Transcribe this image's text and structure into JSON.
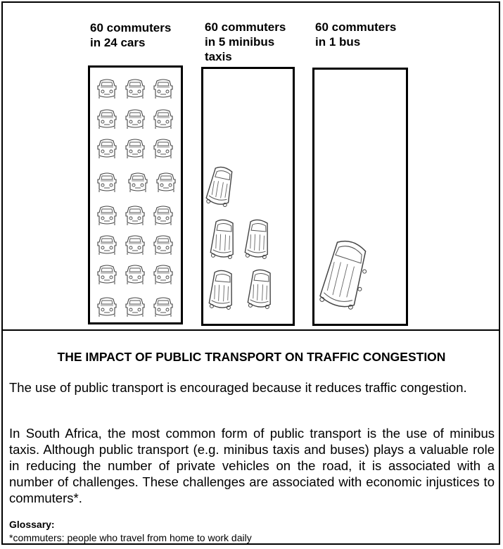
{
  "diagram": {
    "columns": [
      {
        "label": "60 commuters\nin 24 cars",
        "vehicle_icon": "car-icon",
        "vehicle_count": 24
      },
      {
        "label": "60 commuters\nin 5 minibus\ntaxis",
        "vehicle_icon": "minibus-icon",
        "vehicle_count": 5
      },
      {
        "label": "60 commuters\nin 1 bus",
        "vehicle_icon": "bus-icon",
        "vehicle_count": 1
      }
    ]
  },
  "article": {
    "title": "THE IMPACT OF PUBLIC TRANSPORT ON TRAFFIC CONGESTION",
    "paragraphs": [
      "The use of public transport is encouraged because it reduces traffic congestion.",
      "In South Africa, the most common form of public transport is the use of minibus taxis. Although public transport (e.g. minibus taxis and buses) plays a valuable role in reducing the number of private vehicles on the road, it is associated with a number of challenges. These challenges are associated with economic injustices to commuters*."
    ],
    "glossary_title": "Glossary:",
    "glossary_definition": "*commuters: people who travel from home to work daily"
  }
}
